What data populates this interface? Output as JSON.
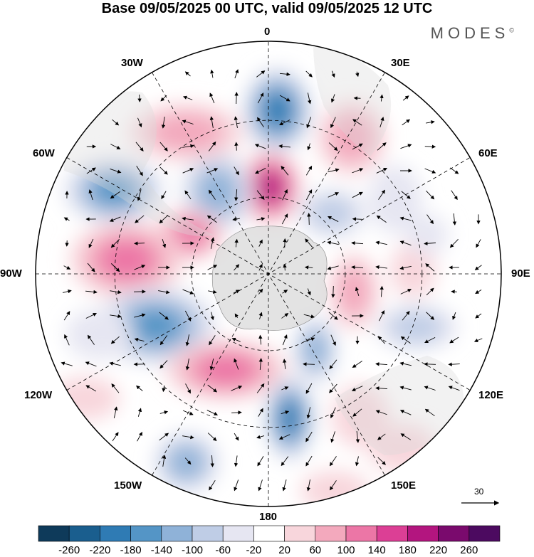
{
  "title": "Base 09/05/2025 00 UTC, valid 09/05/2025 12 UTC",
  "brand": {
    "name": "MODES",
    "mark": "©"
  },
  "longitude_labels": {
    "lon_0": "0",
    "lon_30e": "30E",
    "lon_60e": "60E",
    "lon_90e": "90E",
    "lon_120e": "120E",
    "lon_150e": "150E",
    "lon_180": "180",
    "lon_150w": "150W",
    "lon_120w": "120W",
    "lon_90w": "90W",
    "lon_60w": "60W",
    "lon_30w": "30W"
  },
  "reference_vector": {
    "label": "30"
  },
  "colorbar": {
    "ticks": [
      "-260",
      "-220",
      "-180",
      "-140",
      "-100",
      "-60",
      "-20",
      "20",
      "60",
      "100",
      "140",
      "180",
      "220",
      "260"
    ],
    "colors": [
      "#0e3a5a",
      "#1a5e8e",
      "#2f7bb4",
      "#5495c6",
      "#8fb2d8",
      "#bfcde6",
      "#e6e6f2",
      "#ffffff",
      "#f8d6dc",
      "#f3a9bd",
      "#ec76a6",
      "#dc3f95",
      "#b3157f",
      "#7a0a6d",
      "#4c0a60"
    ]
  },
  "colors": {
    "land": "#d9d9d9",
    "grid": "#000000",
    "vector": "#000000"
  }
}
